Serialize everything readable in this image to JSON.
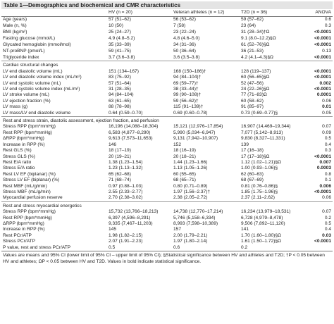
{
  "title": "Table 1—Demographics and biochemical and CMR characteristics",
  "columns": [
    "HV (n = 20)",
    "Veteran athletes (n = 12)",
    "T2D (n = 36)",
    "ANOVA"
  ],
  "sections": [
    {
      "rows": [
        {
          "label": "Age (years)",
          "cells": [
            "57 (51–62)",
            "56 (53–62)",
            "59 (57–62)"
          ],
          "anova": "0.6"
        },
        {
          "label": "Male (n, %)",
          "cells": [
            "10 (50)",
            "7 (58)",
            "23 (64)"
          ],
          "anova": "0.3"
        },
        {
          "label": "BMI (kg/m²)",
          "cells": [
            "25 (24–27)",
            "23 (22–24)",
            "31 (28–34)†Ω"
          ],
          "anova": "<0.0001",
          "bold": true
        },
        {
          "label": "Fasting glucose (mmol/L)",
          "cells": [
            "4.9 (4.8–5.2)",
            "4.8 (4.6–5.0)",
            "9.1 (8.0–12.2)§Ω"
          ],
          "anova": "<0.0001",
          "bold": true
        },
        {
          "label": "Glycated hemoglobin (mmol/mol)",
          "cells": [
            "35 (33–39)",
            "34 (31–36)",
            "61 (52–76)§Ω"
          ],
          "anova": "<0.0001",
          "bold": true
        },
        {
          "label": "NT-proBNP (pmol/L)",
          "cells": [
            "59 (41–75)",
            "50 (36–64)",
            "36 (21–53)"
          ],
          "anova": "0.13"
        },
        {
          "label": "Triglyceride index",
          "cells": [
            "3.7 (3.6–3.8)",
            "3.6 (3.5–3.8)",
            "4.2 (4.1–4.3)§Ω"
          ],
          "anova": "<0.0001",
          "bold": true
        }
      ]
    },
    {
      "heading": "Cardiac structural changes",
      "rows": [
        {
          "label": "LV end diastolic volume (mL)",
          "cells": [
            "151 (134–167)",
            "168 (150–186)†",
            "128 (119–137)"
          ],
          "anova": "<0.0001",
          "bold": true
        },
        {
          "label": "LV end diastolic volume index (mL/m²)",
          "cells": [
            "83 (75–92)",
            "94 (84–104)†",
            "60 (56–65)§Ω"
          ],
          "anova": "<0.0001",
          "bold": true
        },
        {
          "label": "LV end systolic volume (mL)",
          "cells": [
            "57 (51–64)",
            "69 (59–77)†",
            "52 (47–56)"
          ],
          "anova": "0.002",
          "bold": true
        },
        {
          "label": "LV end systolic volume index (mL/m²)",
          "cells": [
            "31 (28–35)",
            "38 (33–44)†",
            "24 (22–26)§Ω"
          ],
          "anova": "<0.0001",
          "bold": true
        },
        {
          "label": "LV stroke volume (mL)",
          "cells": [
            "94 (84–104)",
            "99 (90–108)†",
            "77 (71–83)Ω"
          ],
          "anova": "0.0001",
          "bold": true
        },
        {
          "label": "LV ejection fraction (%)",
          "cells": [
            "63 (61–65)",
            "59 (56–62)†",
            "60 (58–62)"
          ],
          "anova": "0.06"
        },
        {
          "label": "LV mass (g)",
          "cells": [
            "88 (78–98)",
            "115 (91–139)†",
            "91 (85–97)"
          ],
          "anova": "0.01",
          "bold": true
        },
        {
          "label": "LV mass/LV end diastolic volume",
          "cells": [
            "0.64 (0.59–0.70)",
            "0.69 (0.60–0.78)",
            "0.73 (0.69–0.77)§"
          ],
          "anova": "0.05"
        }
      ]
    },
    {
      "heading": "Rest and stress strain, diastolic assessment, ejection fraction, and perfusion",
      "rows": [
        {
          "label": "Stress RPP (bpm*mmHg)",
          "cells": [
            "16,196 (14,088–18,304)",
            "15,121 (12,976–17,854)",
            "16,907 (14,469–19,344)"
          ],
          "anova": "0.07"
        },
        {
          "label": "Rest RPP (bpm*mmHg)",
          "cells": [
            "6,583 (4,877–8,290)",
            "5,990 (5,034–6,947)",
            "7,077 (5,142–8,913)"
          ],
          "anova": "0.09"
        },
        {
          "label": "ΔRPP (bpm*mmHg)",
          "cells": [
            "9,613 (7,573–11,653)",
            "9,131 (7,942–10,907)",
            "9,830 (8,327–11,331)"
          ],
          "anova": "0.5"
        },
        {
          "label": "Increase in RPP (%)",
          "cells": [
            "146",
            "152",
            "139"
          ],
          "anova": "0.4"
        },
        {
          "label": "Rest GLS (%)",
          "cells": [
            "18 (17–19)",
            "18 (16–19)",
            "17 (16–18)"
          ],
          "anova": "0.3"
        },
        {
          "label": "Stress GLS (%)",
          "cells": [
            "20 (19–21)",
            "20 (18–21)",
            "17 (17–18)§Ω"
          ],
          "anova": "<0.0001",
          "bold": true
        },
        {
          "label": "Rest E/A ratio",
          "cells": [
            "1.38 (1.23–1.54)",
            "1.44 (1.23–1.66)",
            "1.12 (1.02–1.21)§Ω"
          ],
          "anova": "0.007",
          "bold": true
        },
        {
          "label": "Stress E/A ratio",
          "cells": [
            "1.23 (1.13–1.32)",
            "1.13 (1.05–1.26)",
            "1.00 (0.93–1.06)§"
          ],
          "anova": "0.0003",
          "bold": true
        },
        {
          "label": "Rest LV EF (biplanar) (%)",
          "cells": [
            "65 (62–68)",
            "60 (55–65)",
            "62 (60–63)"
          ],
          "anova": "0.8"
        },
        {
          "label": "Stress LV EF (biplanar) (%)",
          "cells": [
            "71 (68–74)",
            "68 (65–71)",
            "68 (67–69)"
          ],
          "anova": "0.1"
        },
        {
          "label": "Rest MBF (mL/g/min)",
          "cells": [
            "0.97 (0.88–1.03)",
            "0.80 (0.71–0.89)",
            "0.81 (0.76–0.86)§"
          ],
          "anova": "0.006",
          "bold": true
        },
        {
          "label": "Stress MBF (mL/g/min)",
          "cells": [
            "2.55 (2.33–2.77)",
            "1.97 (1.56–2.37)†",
            "1.85 (1.75–1.96)§"
          ],
          "anova": "<0.0001",
          "bold": true
        },
        {
          "label": "Myocardial perfusion reserve",
          "cells": [
            "2.70 (2.38–3.02)",
            "2.38 (2.05–2.72)",
            "2.37 (2.11–2.62)"
          ],
          "anova": "0.06"
        }
      ]
    },
    {
      "heading": "Rest and stress myocardial energetics",
      "rows": [
        {
          "label": "Stress RPP (bpm*mmHg)",
          "cells": [
            "15,732 (13,766–18,213)",
            "14,738 (12,770–17,214)",
            "16,234 (13,979–18,531)"
          ],
          "anova": "0.07"
        },
        {
          "label": "Rest RPP (bpm*mmHg)",
          "cells": [
            "6,397 (4,596–8,291)",
            "5,746 (5,158–6,334)",
            "6,728 (4,979–8,478)"
          ],
          "anova": "0.2"
        },
        {
          "label": "ΔRPP (bpm*mmHg)",
          "cells": [
            "9,335 (7,467–11,203)",
            "8,993 (7,598–10,389)",
            "9,506 (7,892–11,120)"
          ],
          "anova": "0.5"
        },
        {
          "label": "Increase in RPP (%)",
          "cells": [
            "145",
            "157",
            "141"
          ],
          "anova": "0.4"
        },
        {
          "label": "Rest PCr/ATP",
          "cells": [
            "1.98 (1.82–2.15)",
            "2.00 (1.79–2.21)",
            "1.70 (1.60–1.80)§Ω"
          ],
          "anova": "0.03",
          "bold": true
        },
        {
          "label": "Stress PCr/ATP",
          "cells": [
            "2.07 (1.91–2.23)",
            "1.97 (1.80–2.14)",
            "1.61 (1.50–1.72)§Ω"
          ],
          "anova": "<0.0001",
          "bold": true
        },
        {
          "label": "P value, rest and stress PCr/ATP",
          "cells": [
            "0.5",
            "0.6",
            "0.2"
          ]
        }
      ]
    }
  ],
  "footnote": "Values are means and 95% CI (lower limit of 95% CI – upper limit of 95% CI); §Statistical significance between HV and athletes and T2D; †P < 0.05 between HV and athletes; ΩP < 0.05 between HV and T2D. Values in bold indicate statistical significance."
}
